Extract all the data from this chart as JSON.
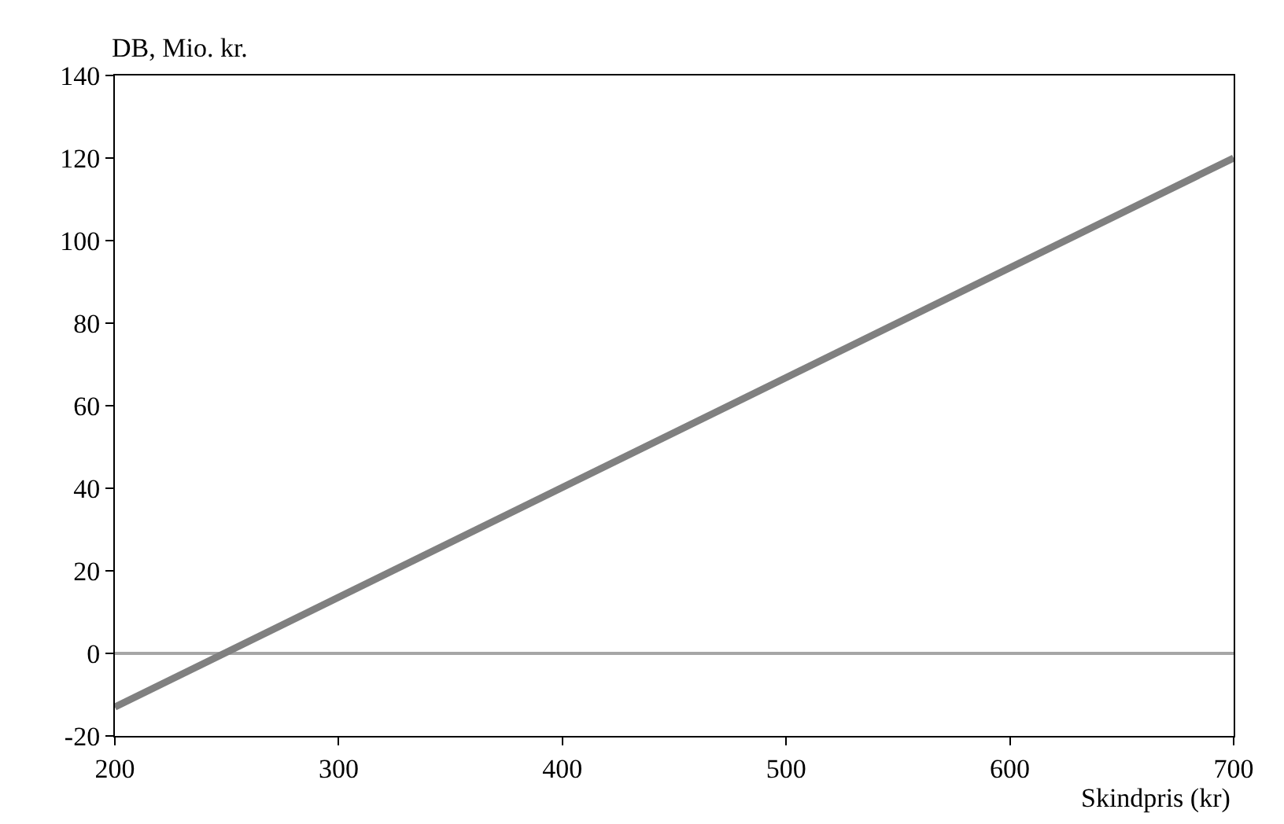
{
  "chart_data": {
    "type": "line",
    "xlabel": "Skindpris (kr)",
    "ylabel": "DB, Mio. kr.",
    "x": [
      200,
      700
    ],
    "series": [
      {
        "color": "#808080",
        "values": [
          -13,
          120
        ]
      }
    ],
    "xlim": [
      200,
      700
    ],
    "xticks": [
      200,
      300,
      400,
      500,
      600,
      700
    ],
    "ylim": [
      -20,
      140
    ],
    "yticks": [
      -20,
      0,
      20,
      40,
      60,
      80,
      100,
      120,
      140
    ],
    "ref_lines": [
      {
        "axis": "y",
        "value": 0,
        "color": "#a6a6a6"
      }
    ],
    "grid": false,
    "marker": "none",
    "line_style": "solid"
  }
}
